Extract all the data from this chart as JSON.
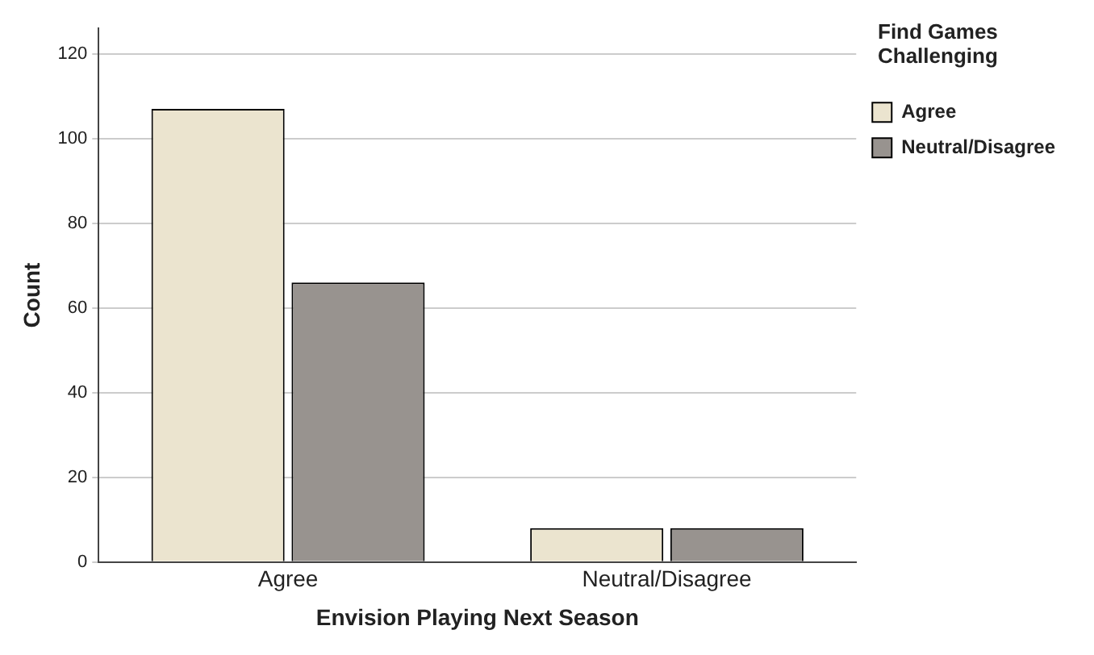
{
  "chart_data": {
    "type": "bar",
    "xlabel": "Envision Playing Next Season",
    "ylabel": "Count",
    "legend_title": "Find Games Challenging",
    "categories": [
      "Agree",
      "Neutral/Disagree"
    ],
    "series": [
      {
        "name": "Agree",
        "color": "#ebe4cf",
        "values": [
          107,
          8
        ]
      },
      {
        "name": "Neutral/Disagree",
        "color": "#98938f",
        "values": [
          66,
          8
        ]
      }
    ],
    "ylim": [
      0,
      126
    ],
    "yticks": [
      0,
      20,
      40,
      60,
      80,
      100,
      120
    ],
    "grid": "y",
    "legend": "top right"
  }
}
